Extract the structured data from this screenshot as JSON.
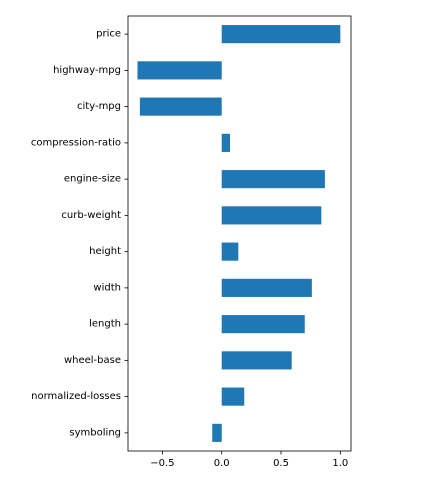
{
  "chart_data": {
    "type": "bar",
    "orientation": "horizontal",
    "categories": [
      "symboling",
      "normalized-losses",
      "wheel-base",
      "length",
      "width",
      "height",
      "curb-weight",
      "engine-size",
      "compression-ratio",
      "city-mpg",
      "highway-mpg",
      "price"
    ],
    "values": [
      -0.08,
      0.19,
      0.59,
      0.7,
      0.76,
      0.14,
      0.84,
      0.87,
      0.07,
      -0.69,
      -0.71,
      1.0
    ],
    "xlim": [
      -0.79,
      1.09
    ],
    "xticks": [
      -0.5,
      0.0,
      0.5,
      1.0
    ],
    "xtick_labels": [
      "−0.5",
      "0.0",
      "0.5",
      "1.0"
    ],
    "bar_color": "#1f77b4",
    "grid": false
  }
}
